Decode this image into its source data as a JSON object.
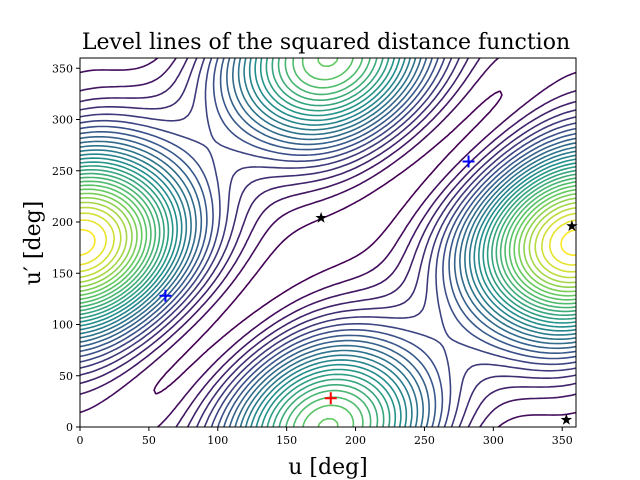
{
  "chart_data": {
    "type": "contour",
    "title": "Level lines of the squared distance function",
    "xlabel": "u [deg]",
    "ylabel": "u′ [deg]",
    "xlim": [
      0,
      360
    ],
    "ylim": [
      0,
      360
    ],
    "x_ticks": [
      0,
      50,
      100,
      150,
      200,
      250,
      300,
      350
    ],
    "y_ticks": [
      0,
      50,
      100,
      150,
      200,
      250,
      300,
      350
    ],
    "colormap": "viridis",
    "grid": false,
    "legend": "none",
    "markers": [
      {
        "kind": "minimum",
        "symbol": "plus",
        "color": "#0000ff",
        "x": 62,
        "y": 128
      },
      {
        "kind": "minimum",
        "symbol": "plus",
        "color": "#0000ff",
        "x": 282,
        "y": 259
      },
      {
        "kind": "maximum",
        "symbol": "plus",
        "color": "#ff0000",
        "x": 182,
        "y": 28
      },
      {
        "kind": "saddle",
        "symbol": "star",
        "color": "#000000",
        "x": 175,
        "y": 204
      },
      {
        "kind": "saddle",
        "symbol": "star",
        "color": "#000000",
        "x": 357,
        "y": 196
      },
      {
        "kind": "saddle",
        "symbol": "star",
        "color": "#000000",
        "x": 353,
        "y": 7
      }
    ]
  }
}
